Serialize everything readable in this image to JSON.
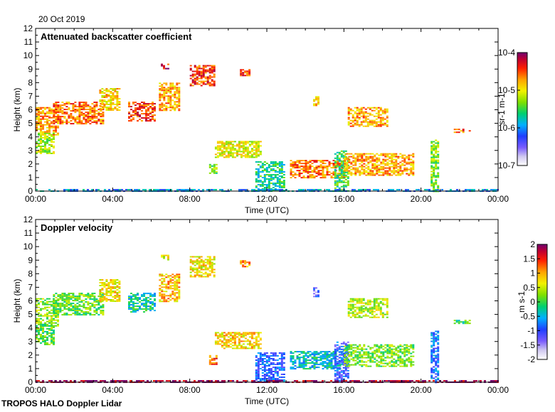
{
  "date_label": "20 Oct 2019",
  "footer": "TROPOS HALO Doppler Lidar",
  "chart_data": [
    {
      "type": "heatmap",
      "title": "Attenuated backscatter coefficient",
      "xlabel": "Time (UTC)",
      "ylabel": "Height (km)",
      "xlim": [
        "00:00",
        "24:00"
      ],
      "ylim": [
        0,
        12
      ],
      "x_ticks": [
        "00:00",
        "04:00",
        "08:00",
        "12:00",
        "16:00",
        "20:00",
        "00:00"
      ],
      "y_ticks": [
        "0",
        "1",
        "2",
        "3",
        "4",
        "5",
        "6",
        "7",
        "8",
        "9",
        "10",
        "11",
        "12"
      ],
      "colorbar": {
        "scale": "log",
        "range": [
          1e-07,
          0.0001
        ],
        "ticks": [
          "10-7",
          "10-6",
          "10-5",
          "10-4"
        ],
        "unit": "sr-1 m-1"
      },
      "regions": [
        {
          "t0": 0.0,
          "t1": 1.2,
          "h0": 4.2,
          "h1": 6.2,
          "value": 0.75
        },
        {
          "t0": 0.0,
          "t1": 0.9,
          "h0": 2.8,
          "h1": 4.3,
          "value": 0.6
        },
        {
          "t0": 0.9,
          "t1": 3.5,
          "h0": 5.0,
          "h1": 6.6,
          "value": 0.8
        },
        {
          "t0": 3.3,
          "t1": 4.4,
          "h0": 6.0,
          "h1": 7.6,
          "value": 0.7
        },
        {
          "t0": 4.8,
          "t1": 6.2,
          "h0": 5.2,
          "h1": 6.6,
          "value": 0.85
        },
        {
          "t0": 6.4,
          "t1": 7.5,
          "h0": 6.0,
          "h1": 8.0,
          "value": 0.75
        },
        {
          "t0": 6.5,
          "t1": 6.9,
          "h0": 9.0,
          "h1": 9.4,
          "value": 0.9
        },
        {
          "t0": 8.0,
          "t1": 9.3,
          "h0": 7.8,
          "h1": 9.3,
          "value": 0.85
        },
        {
          "t0": 10.6,
          "t1": 11.1,
          "h0": 8.5,
          "h1": 9.0,
          "value": 0.85
        },
        {
          "t0": 9.3,
          "t1": 11.7,
          "h0": 2.5,
          "h1": 3.7,
          "value": 0.65
        },
        {
          "t0": 9.0,
          "t1": 9.4,
          "h0": 1.3,
          "h1": 2.0,
          "value": 0.55
        },
        {
          "t0": 11.4,
          "t1": 12.9,
          "h0": 0.0,
          "h1": 2.2,
          "value": 0.45
        },
        {
          "t0": 13.2,
          "t1": 16.0,
          "h0": 1.0,
          "h1": 2.3,
          "value": 0.8
        },
        {
          "t0": 15.5,
          "t1": 16.2,
          "h0": 0.0,
          "h1": 3.0,
          "value": 0.5
        },
        {
          "t0": 16.0,
          "t1": 19.6,
          "h0": 1.2,
          "h1": 2.8,
          "value": 0.75
        },
        {
          "t0": 14.4,
          "t1": 14.7,
          "h0": 6.3,
          "h1": 7.0,
          "value": 0.7
        },
        {
          "t0": 16.2,
          "t1": 18.2,
          "h0": 4.8,
          "h1": 6.2,
          "value": 0.75
        },
        {
          "t0": 20.5,
          "t1": 20.9,
          "h0": 0.0,
          "h1": 3.8,
          "value": 0.55
        },
        {
          "t0": 21.7,
          "t1": 22.5,
          "h0": 4.3,
          "h1": 4.6,
          "value": 0.8
        },
        {
          "t0": 0.0,
          "t1": 24.0,
          "h0": 0.0,
          "h1": 0.15,
          "value": 0.35
        }
      ]
    },
    {
      "type": "heatmap",
      "title": "Doppler velocity",
      "xlabel": "Time (UTC)",
      "ylabel": "Height (km)",
      "xlim": [
        "00:00",
        "24:00"
      ],
      "ylim": [
        0,
        12
      ],
      "x_ticks": [
        "00:00",
        "04:00",
        "08:00",
        "12:00",
        "16:00",
        "20:00",
        "00:00"
      ],
      "y_ticks": [
        "0",
        "1",
        "2",
        "3",
        "4",
        "5",
        "6",
        "7",
        "8",
        "9",
        "10",
        "11",
        "12"
      ],
      "colorbar": {
        "scale": "linear",
        "range": [
          -2,
          2
        ],
        "ticks": [
          "2",
          "1.5",
          "1",
          "0.5",
          "0",
          "-0.5",
          "-1",
          "-1.5",
          "-2"
        ],
        "unit": "m s-1"
      },
      "regions": [
        {
          "t0": 0.0,
          "t1": 1.2,
          "h0": 4.2,
          "h1": 6.2,
          "value": 0.3
        },
        {
          "t0": 0.0,
          "t1": 0.9,
          "h0": 2.8,
          "h1": 4.3,
          "value": 0.1
        },
        {
          "t0": 0.9,
          "t1": 3.5,
          "h0": 5.0,
          "h1": 6.6,
          "value": 0.1
        },
        {
          "t0": 3.3,
          "t1": 4.4,
          "h0": 6.0,
          "h1": 7.6,
          "value": 0.7
        },
        {
          "t0": 4.8,
          "t1": 6.2,
          "h0": 5.2,
          "h1": 6.6,
          "value": -0.3
        },
        {
          "t0": 6.4,
          "t1": 7.5,
          "h0": 6.0,
          "h1": 8.0,
          "value": 0.9
        },
        {
          "t0": 6.5,
          "t1": 6.9,
          "h0": 9.0,
          "h1": 9.4,
          "value": 0.6
        },
        {
          "t0": 8.0,
          "t1": 9.3,
          "h0": 7.8,
          "h1": 9.3,
          "value": 0.7
        },
        {
          "t0": 10.6,
          "t1": 11.1,
          "h0": 8.5,
          "h1": 9.0,
          "value": 1.1
        },
        {
          "t0": 9.3,
          "t1": 11.7,
          "h0": 2.5,
          "h1": 3.7,
          "value": 0.8
        },
        {
          "t0": 9.0,
          "t1": 9.4,
          "h0": 1.3,
          "h1": 2.0,
          "value": 1.3
        },
        {
          "t0": 11.4,
          "t1": 12.9,
          "h0": 0.0,
          "h1": 2.2,
          "value": -0.9
        },
        {
          "t0": 13.2,
          "t1": 16.0,
          "h0": 1.0,
          "h1": 2.3,
          "value": -0.4
        },
        {
          "t0": 15.5,
          "t1": 16.2,
          "h0": 0.0,
          "h1": 3.0,
          "value": -1.0
        },
        {
          "t0": 16.0,
          "t1": 19.6,
          "h0": 1.2,
          "h1": 2.8,
          "value": 0.2
        },
        {
          "t0": 14.4,
          "t1": 14.7,
          "h0": 6.3,
          "h1": 7.0,
          "value": -1.2
        },
        {
          "t0": 16.2,
          "t1": 18.2,
          "h0": 4.8,
          "h1": 6.2,
          "value": 0.4
        },
        {
          "t0": 20.5,
          "t1": 20.9,
          "h0": 0.0,
          "h1": 3.8,
          "value": -0.8
        },
        {
          "t0": 21.7,
          "t1": 22.5,
          "h0": 4.3,
          "h1": 4.6,
          "value": 0.0
        },
        {
          "t0": 0.0,
          "t1": 24.0,
          "h0": 0.0,
          "h1": 0.15,
          "value": 1.9
        }
      ]
    }
  ]
}
